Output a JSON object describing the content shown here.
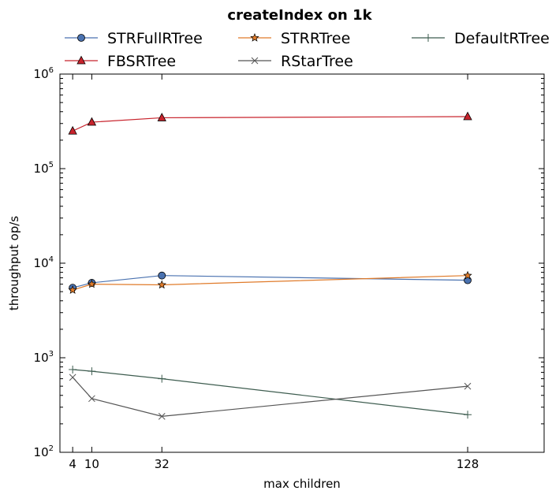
{
  "chart_data": {
    "type": "line",
    "title": "createIndex on 1k",
    "xlabel": "max children",
    "ylabel": "throughput op/s",
    "x": [
      4,
      10,
      32,
      128
    ],
    "xticks": [
      "4",
      "10",
      "32",
      "128"
    ],
    "xlim": [
      0,
      152
    ],
    "yscale": "log",
    "ylim": [
      100,
      1000000
    ],
    "yticks": [
      {
        "value": 100,
        "base": "10",
        "exp": "2"
      },
      {
        "value": 1000,
        "base": "10",
        "exp": "3"
      },
      {
        "value": 10000,
        "base": "10",
        "exp": "4"
      },
      {
        "value": 100000,
        "base": "10",
        "exp": "5"
      },
      {
        "value": 1000000,
        "base": "10",
        "exp": "6"
      }
    ],
    "grid": false,
    "legend_placement": "top, above plot, 3 columns",
    "series": [
      {
        "name": "STRFullRTree",
        "color": "#4a72b0",
        "marker": "circle",
        "values": [
          5500,
          6200,
          7400,
          6600
        ]
      },
      {
        "name": "STRRTree",
        "color": "#e07b2a",
        "marker": "star",
        "values": [
          5200,
          6000,
          5900,
          7400
        ]
      },
      {
        "name": "DefaultRTree",
        "color": "#3d5c4f",
        "marker": "plus",
        "values": [
          750,
          720,
          600,
          250
        ]
      },
      {
        "name": "FBSRTree",
        "color": "#c8232c",
        "marker": "triangle",
        "values": [
          250000,
          310000,
          345000,
          355000
        ]
      },
      {
        "name": "RStarTree",
        "color": "#555555",
        "marker": "x",
        "values": [
          620,
          370,
          240,
          500
        ]
      }
    ]
  }
}
